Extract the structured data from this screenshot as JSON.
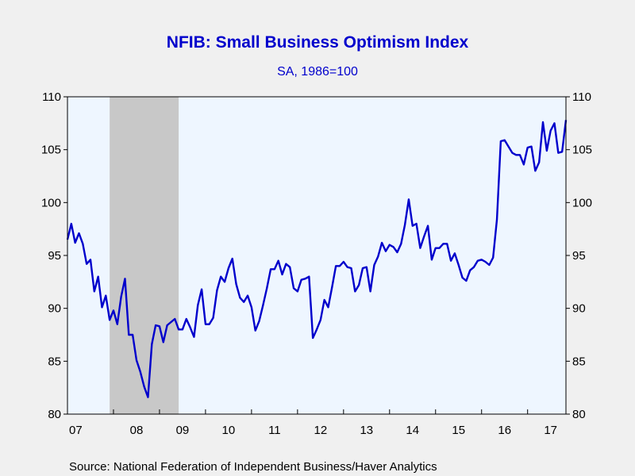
{
  "chart_data": {
    "type": "line",
    "title": "NFIB: Small Business Optimism Index",
    "subtitle": "SA, 1986=100",
    "source": "Source:  National Federation of Independent Business/Haver Analytics",
    "ylim": [
      80,
      110
    ],
    "y_ticks": [
      "80",
      "85",
      "90",
      "95",
      "100",
      "105",
      "110"
    ],
    "x_tick_labels": [
      "07",
      "08",
      "09",
      "10",
      "11",
      "12",
      "13",
      "14",
      "15",
      "16",
      "17"
    ],
    "x_start": "2007-01",
    "recession": {
      "start": "2007-12",
      "end": "2009-06"
    },
    "colors": {
      "line": "#0000cc",
      "plot_bg": "#eef6ff",
      "recession": "#c8c8c8"
    },
    "series": [
      {
        "values": [
          96.5,
          98.0,
          96.2,
          97.1,
          96.1,
          94.2,
          94.6,
          91.6,
          93.0,
          90.1,
          91.2,
          88.9,
          89.8,
          88.5,
          91.1,
          92.8,
          87.5,
          87.5,
          85.1,
          84.0,
          82.6,
          81.6,
          86.6,
          88.4,
          88.3,
          86.8,
          88.4,
          88.7,
          89.0,
          88.0,
          88.0,
          89.0,
          88.2,
          87.3,
          90.3,
          91.8,
          88.5,
          88.5,
          89.1,
          91.7,
          93.0,
          92.5,
          93.8,
          94.7,
          92.3,
          91.0,
          90.6,
          91.2,
          90.1,
          87.9,
          88.8,
          90.3,
          91.9,
          93.7,
          93.7,
          94.5,
          93.2,
          94.2,
          93.9,
          91.9,
          91.6,
          92.7,
          92.8,
          93.0,
          87.2,
          88.0,
          88.9,
          90.8,
          90.1,
          92.0,
          94.0,
          94.0,
          94.4,
          93.9,
          93.8,
          91.6,
          92.2,
          93.8,
          93.9,
          91.6,
          94.1,
          94.9,
          96.2,
          95.4,
          96.0,
          95.8,
          95.3,
          96.1,
          97.9,
          100.3,
          97.8,
          98.0,
          95.7,
          96.8,
          97.8,
          94.6,
          95.7,
          95.7,
          96.1,
          96.1,
          94.5,
          95.2,
          94.1,
          92.9,
          92.6,
          93.6,
          93.9,
          94.5,
          94.6,
          94.4,
          94.1,
          94.8,
          98.4,
          105.8,
          105.9,
          105.3,
          104.7,
          104.5,
          104.5,
          103.6,
          105.2,
          105.3,
          103.0,
          103.8,
          107.6,
          104.9,
          106.8,
          107.5,
          104.7,
          104.8,
          107.8
        ]
      }
    ]
  }
}
